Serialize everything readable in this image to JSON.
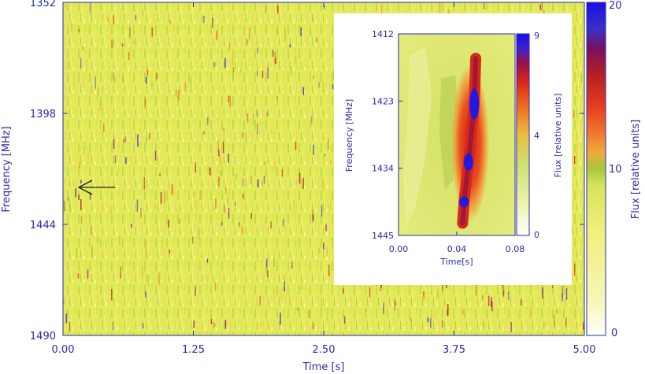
{
  "chart_data": [
    {
      "type": "heatmap",
      "panel": "main",
      "xlabel": "Time [s]",
      "ylabel": "Frequency [MHz]",
      "xlim": [
        0.0,
        5.0
      ],
      "ylim": [
        1490,
        1352
      ],
      "x_ticks": [
        "0.00",
        "1.25",
        "2.50",
        "3.75",
        "5.00"
      ],
      "y_ticks": [
        "1352",
        "1398",
        "1444",
        "1490"
      ],
      "colorbar": {
        "label": "Flux [relative units]",
        "range": [
          0,
          20
        ],
        "ticks": [
          "20",
          "10",
          "0"
        ]
      },
      "annotation": {
        "type": "arrow",
        "points_to_time_s": 0.1,
        "points_to_frequency_mhz": 1431
      },
      "background_color": "#e0e858"
    },
    {
      "type": "heatmap",
      "panel": "inset",
      "xlabel": "Time[s]",
      "ylabel": "Frequency [MHz]",
      "xlim": [
        0.0,
        0.08
      ],
      "ylim": [
        1445,
        1412
      ],
      "x_ticks": [
        "0.00",
        "0.04",
        "0.08"
      ],
      "y_ticks": [
        "1412",
        "1423",
        "1434",
        "1445"
      ],
      "colorbar": {
        "label": "Flux [relative units]",
        "range": [
          0,
          9
        ],
        "ticks": [
          "9",
          "4",
          "0"
        ]
      },
      "pulse": [
        {
          "time_s": 0.052,
          "frequency_mhz": 1423.5,
          "flux": 9
        },
        {
          "time_s": 0.048,
          "frequency_mhz": 1433,
          "flux": 9
        },
        {
          "time_s": 0.045,
          "frequency_mhz": 1439.5,
          "flux": 9
        }
      ]
    }
  ]
}
